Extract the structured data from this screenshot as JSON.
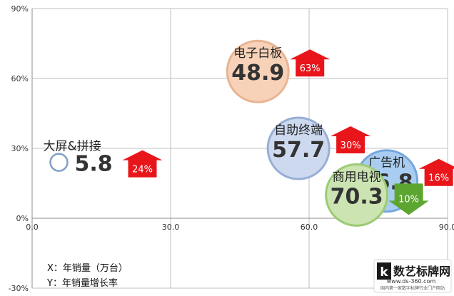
{
  "chart_data": {
    "type": "bubble",
    "title": "",
    "xlabel": "",
    "ylabel": "",
    "xlim": [
      0,
      90
    ],
    "ylim": [
      -30,
      90
    ],
    "x_ticks": [
      {
        "value": 0,
        "label": "0.0"
      },
      {
        "value": 30,
        "label": "30.0"
      },
      {
        "value": 60,
        "label": "60.0"
      },
      {
        "value": 90,
        "label": "90.0"
      }
    ],
    "y_ticks": [
      {
        "value": -30,
        "label": "-30%"
      },
      {
        "value": 0,
        "label": "0%"
      },
      {
        "value": 30,
        "label": "30%"
      },
      {
        "value": 60,
        "label": "60%"
      },
      {
        "value": 90,
        "label": "90%"
      }
    ],
    "grid": true,
    "points": [
      {
        "name": "大屏&拼接",
        "x": 5.8,
        "y": 24,
        "value_label": "5.8",
        "growth_label": "24%",
        "direction": "up",
        "bubble": "hollow",
        "fill": "#ffffff",
        "stroke": "#7f9fc9"
      },
      {
        "name": "电子白板",
        "x": 48.9,
        "y": 63,
        "value_label": "48.9",
        "growth_label": "63%",
        "direction": "up",
        "bubble": "filled",
        "fill": "#f7d2b8",
        "stroke": "#e8b593"
      },
      {
        "name": "自助终端",
        "x": 57.7,
        "y": 30,
        "value_label": "57.7",
        "growth_label": "30%",
        "direction": "up",
        "bubble": "filled",
        "fill": "#cdd9ef",
        "stroke": "#98aed6"
      },
      {
        "name": "广告机",
        "x": 76.8,
        "y": 16,
        "value_label": "76.8",
        "growth_label": "16%",
        "direction": "up",
        "bubble": "filled",
        "fill": "#a9cdf0",
        "stroke": "#76a7de"
      },
      {
        "name": "商用电视",
        "x": 70.3,
        "y": 10,
        "value_label": "70.3",
        "growth_label": "10%",
        "direction": "down",
        "bubble": "filled",
        "fill": "#cbe4b2",
        "stroke": "#9ccb74"
      }
    ],
    "colors": {
      "up_arrow": "#e8161b",
      "down_arrow": "#5da531",
      "grid": "#bfbfbf",
      "axis": "#8c8c8c"
    }
  },
  "notes": [
    "X：年销量（万台）",
    "Y：年销量增长率"
  ],
  "watermark": {
    "brand": "数艺标牌网",
    "domain": "www.ds-360.com",
    "tagline": "国内第一家数字标牌行业门户网站"
  }
}
